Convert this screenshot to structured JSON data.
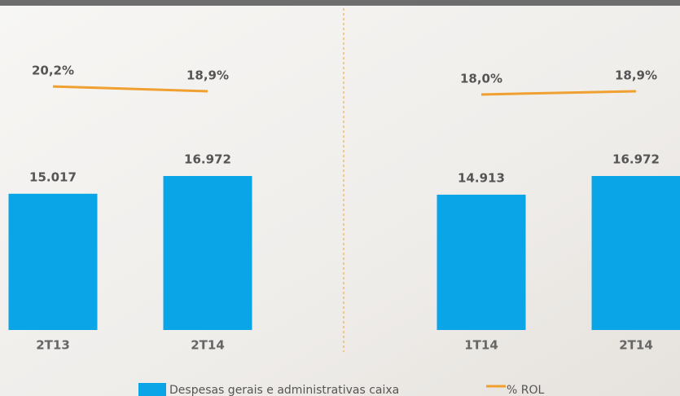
{
  "chart_data": [
    {
      "type": "bar-line",
      "categories": [
        "2T13",
        "2T14"
      ],
      "series": [
        {
          "name": "Despesas gerais e administrativas caixa",
          "type": "bar",
          "color": "#0aa5e6",
          "values": [
            15017,
            16972
          ],
          "value_labels": [
            "15.017",
            "16.972"
          ]
        },
        {
          "name": "% ROL",
          "type": "line",
          "color": "#f0a030",
          "values": [
            20.2,
            18.9
          ],
          "value_labels": [
            "20,2%",
            "18,9%"
          ]
        }
      ]
    },
    {
      "type": "bar-line",
      "categories": [
        "1T14",
        "2T14"
      ],
      "series": [
        {
          "type": "bar",
          "color": "#0aa5e6",
          "values": [
            14913,
            16972
          ],
          "value_labels": [
            "14.913",
            "16.972"
          ]
        },
        {
          "type": "line",
          "color": "#f0a030",
          "values": [
            18.0,
            18.9
          ],
          "value_labels": [
            "18,0%",
            "18,9%"
          ]
        }
      ]
    }
  ]
}
